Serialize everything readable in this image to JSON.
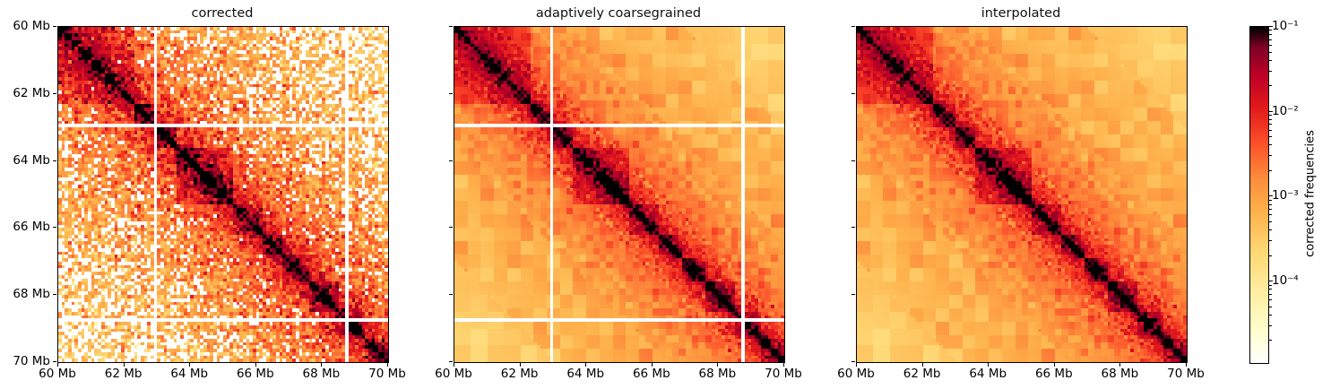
{
  "chart_data": {
    "type": "heatmap",
    "figure_kind": "Hi-C contact maps, three panels sharing axes and one colorbar",
    "panels": [
      {
        "title": "corrected",
        "appearance": "raw sparse speckled, white dropout pixels increase with genomic distance",
        "noise_sigma": 0.85,
        "dropout": true,
        "show_masked": true,
        "coarsegrain": false,
        "seed": 1
      },
      {
        "title": "adaptively coarsegrained",
        "appearance": "noise reduced by distance-adaptive block averaging, masked bins remain white",
        "noise_sigma": 0.5,
        "dropout": false,
        "show_masked": true,
        "coarsegrain": true,
        "seed": 2
      },
      {
        "title": "interpolated",
        "appearance": "same as coarsegrained but masked bins filled by interpolation",
        "noise_sigma": 0.5,
        "dropout": false,
        "show_masked": false,
        "coarsegrain": true,
        "seed": 2
      }
    ],
    "x": {
      "range_mb": [
        60,
        70
      ],
      "ticks": [
        "60 Mb",
        "62 Mb",
        "64 Mb",
        "66 Mb",
        "68 Mb",
        "70 Mb"
      ]
    },
    "y": {
      "range_mb": [
        60,
        70
      ],
      "direction": "top-to-bottom",
      "ticks": [
        "60 Mb",
        "62 Mb",
        "64 Mb",
        "66 Mb",
        "68 Mb",
        "70 Mb"
      ],
      "labels_on_first_panel_only": true
    },
    "bins": 100,
    "bin_size_mb": 0.1,
    "diagonal": "near-black maximal frequency along main diagonal",
    "distance_decay": {
      "amplitude": 0.09,
      "exponent": 1.25
    },
    "tad_boundaries_mb": [
      60,
      62.25,
      63.0,
      63.6,
      65.3,
      66.2,
      66.9,
      67.6,
      68.5,
      69.3,
      70
    ],
    "tad_boost": 2.6,
    "subtad_blocks_bins": [
      [
        43,
        53,
        1.7
      ]
    ],
    "masked_bins_mb": [
      62.9,
      68.7
    ],
    "color_scale": {
      "type": "log",
      "vmin": 1.1e-05,
      "vmax": 0.1,
      "colormap": "fall (white → yellow → orange → red → black)",
      "stops": [
        [
          0,
          "#ffffff"
        ],
        [
          0.1,
          "#ffffcc"
        ],
        [
          0.22,
          "#ffeda0"
        ],
        [
          0.33,
          "#fed976"
        ],
        [
          0.45,
          "#feb24c"
        ],
        [
          0.55,
          "#fd8d3c"
        ],
        [
          0.66,
          "#fc4e2a"
        ],
        [
          0.76,
          "#e31a1c"
        ],
        [
          0.86,
          "#bd0026"
        ],
        [
          0.94,
          "#800026"
        ],
        [
          1,
          "#000000"
        ]
      ]
    },
    "colorbar": {
      "label": "corrected frequencies",
      "orientation": "vertical",
      "ticks": [
        {
          "label": "10⁻¹",
          "value": 0.1
        },
        {
          "label": "10⁻²",
          "value": 0.01
        },
        {
          "label": "10⁻³",
          "value": 0.001
        },
        {
          "label": "10⁻⁴",
          "value": 0.0001
        }
      ],
      "minor_ticks": "log minor ticks at 2–9 per decade"
    }
  }
}
